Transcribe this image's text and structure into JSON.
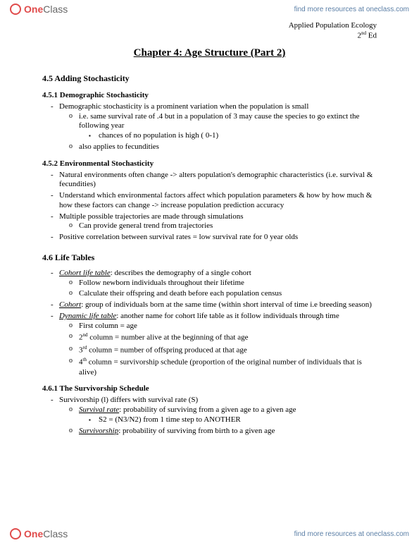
{
  "brand": {
    "one": "One",
    "class": "Class"
  },
  "header_link": "find more resources at oneclass.com",
  "footer_link": "find more resources at oneclass.com",
  "course": {
    "name": "Applied Population Ecology",
    "edition_pre": "2",
    "edition_sup": "nd",
    "edition_post": " Ed"
  },
  "title": "Chapter 4: Age Structure (Part 2)",
  "s45": {
    "heading": "4.5 Adding Stochasticity",
    "s451": {
      "heading": "4.5.1 Demographic Stochasticity",
      "b1": "Demographic stochasticity is a prominent variation when the population is small",
      "b1a": "i.e. same survival rate of .4 but in a population of 3 may cause the species to go extinct the following year",
      "b1a1": "chances of no population is high ( 0-1)",
      "b1b": "also applies to fecundities"
    },
    "s452": {
      "heading": "4.5.2 Environmental Stochasticity",
      "b1": "Natural environments often change -> alters population's demographic characteristics (i.e. survival & fecundities)",
      "b2": "Understand which environmental factors affect which population parameters & how by how much & how these factors can change -> increase population prediction accuracy",
      "b3": "Multiple possible trajectories are made through simulations",
      "b3a": "Can provide general trend from trajectories",
      "b4": "Positive correlation between survival rates = low survival rate for 0 year olds"
    }
  },
  "s46": {
    "heading": "4.6 Life Tables",
    "b1_term": "Cohort life table",
    "b1_rest": ": describes the demography of a single cohort",
    "b1a": "Follow newborn individuals throughout their lifetime",
    "b1b": "Calculate their offspring and death before each population census",
    "b2_term": "Cohort",
    "b2_rest": ": group of individuals born at the same time (within short interval of time i.e breeding season)",
    "b3_term": "Dynamic life table",
    "b3_rest": ": another name for cohort life table as it follow individuals through time",
    "b3a": "First column = age",
    "b3b_pre": "2",
    "b3b_sup": "nd",
    "b3b_post": " column = number alive at the beginning of that age",
    "b3c_pre": "3",
    "b3c_sup": "rd",
    "b3c_post": " column = number of offspring produced at that age",
    "b3d_pre": "4",
    "b3d_sup": "th",
    "b3d_post": " column = survivorship schedule (proportion of the original number of individuals that is alive)",
    "s461": {
      "heading": "4.6.1 The Survivorship Schedule",
      "b1": "Survivorship (l) differs with survival rate (S)",
      "b1a_term": "Survival rate",
      "b1a_rest": ": probability of surviving from a given age to a given age",
      "b1a1": "S2 = (N3/N2) from 1 time step to ANOTHER",
      "b1b_term": "Survivorship",
      "b1b_rest": ": probability of surviving from birth to a given age"
    }
  }
}
